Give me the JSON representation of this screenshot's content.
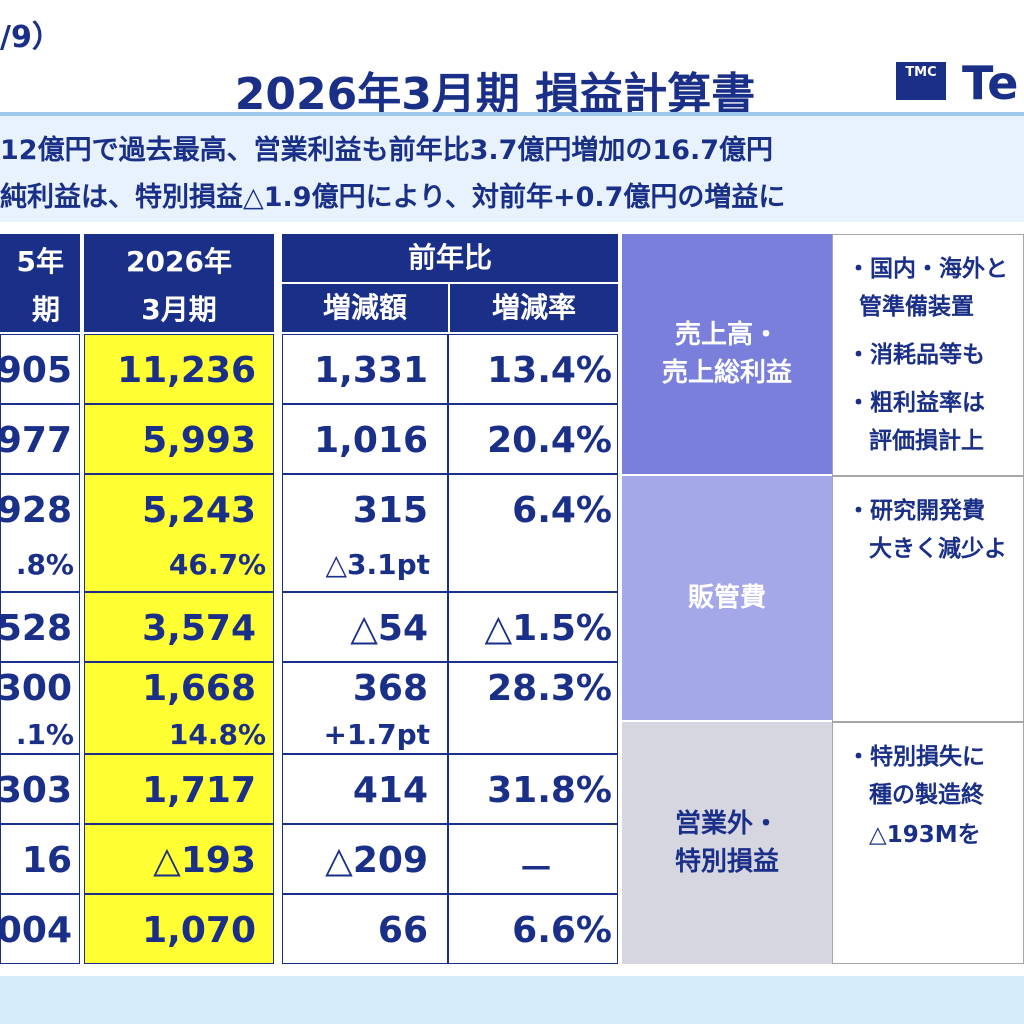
{
  "header": {
    "page_label": "/9）",
    "title": "2026年3月期 損益計算書",
    "logo_badge": "TMC",
    "logo_text": "Te"
  },
  "summary": [
    "12億円で過去最高、営業利益も前年比3.7億円増加の16.7億円",
    "純利益は、特別損益△1.9億円により、対前年+0.7億円の増益に"
  ],
  "table": {
    "col_prev_header": [
      "5年",
      "期"
    ],
    "col_curr_header": [
      "2026年",
      "3月期"
    ],
    "yoy_header": "前年比",
    "yoy_sub": [
      "増減額",
      "増減率"
    ],
    "rows": [
      {
        "prev": "905",
        "curr": "11,236",
        "diff": "1,331",
        "rate": "13.4%"
      },
      {
        "prev": "977",
        "curr": "5,993",
        "diff": "1,016",
        "rate": "20.4%"
      },
      {
        "prev": "928",
        "prev2": ".8%",
        "curr": "5,243",
        "curr2": "46.7%",
        "diff": "315",
        "diff2": "△3.1pt",
        "rate": "6.4%"
      },
      {
        "prev": "528",
        "curr": "3,574",
        "diff": "△54",
        "rate": "△1.5%"
      },
      {
        "prev": "300",
        "prev2": ".1%",
        "curr": "1,668",
        "curr2": "14.8%",
        "diff": "368",
        "diff2": "+1.7pt",
        "rate": "28.3%"
      },
      {
        "prev": "303",
        "curr": "1,717",
        "diff": "414",
        "rate": "31.8%"
      },
      {
        "prev": "16",
        "curr": "△193",
        "diff": "△209",
        "rate": "－"
      },
      {
        "prev": "004",
        "curr": "1,070",
        "diff": "66",
        "rate": "6.6%"
      }
    ]
  },
  "categories": [
    {
      "label_line1": "売上高・",
      "label_line2": "売上総利益",
      "color": "#7a7fdb"
    },
    {
      "label_line1": "販管費",
      "label_line2": "",
      "color": "#a5a8e8"
    },
    {
      "label_line1": "営業外・",
      "label_line2": "特別損益",
      "color": "#d6d6e0"
    }
  ],
  "notes": {
    "sales": [
      "・国内・海外と",
      "管準備装置",
      "・消耗品等も",
      "・粗利益率は",
      "評価損計上"
    ],
    "sga": [
      "・研究開発費",
      "大きく減少よ"
    ],
    "extra": [
      "・特別損失に",
      "種の製造終",
      "△193Mを"
    ]
  },
  "colors": {
    "navy": "#1a2f87",
    "highlight": "#ffff33",
    "band": "#e7f2fc"
  }
}
